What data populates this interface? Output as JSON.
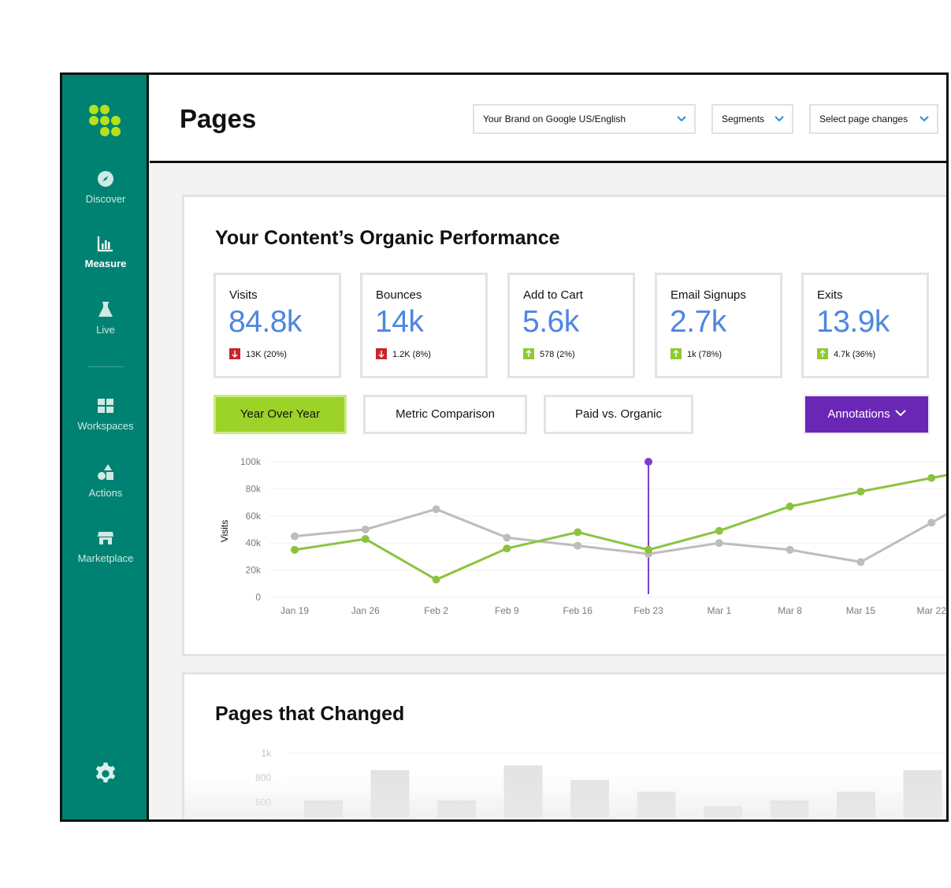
{
  "sidebar": {
    "items": [
      {
        "label": "Discover",
        "icon": "compass-icon"
      },
      {
        "label": "Measure",
        "icon": "bar-chart-icon"
      },
      {
        "label": "Live",
        "icon": "flask-icon"
      },
      {
        "label": "Workspaces",
        "icon": "grid-icon"
      },
      {
        "label": "Actions",
        "icon": "shapes-icon"
      },
      {
        "label": "Marketplace",
        "icon": "store-icon"
      }
    ],
    "settings_icon": "gear-icon"
  },
  "header": {
    "title": "Pages",
    "dropdowns": {
      "brand": "Your Brand on Google US/English",
      "segments": "Segments",
      "page_changes": "Select page changes"
    }
  },
  "performance": {
    "title": "Your Content’s Organic Performance",
    "cards": [
      {
        "label": "Visits",
        "value": "84.8k",
        "delta": "13K (20%)",
        "direction": "down"
      },
      {
        "label": "Bounces",
        "value": "14k",
        "delta": "1.2K (8%)",
        "direction": "down"
      },
      {
        "label": "Add to Cart",
        "value": "5.6k",
        "delta": "578 (2%)",
        "direction": "up"
      },
      {
        "label": "Email Signups",
        "value": "2.7k",
        "delta": "1k (78%)",
        "direction": "up"
      },
      {
        "label": "Exits",
        "value": "13.9k",
        "delta": "4.7k (36%)",
        "direction": "up"
      }
    ],
    "tabs": {
      "year_over_year": "Year Over Year",
      "metric_comparison": "Metric Comparison",
      "paid_vs_organic": "Paid vs. Organic",
      "annotations": "Annotations"
    }
  },
  "chart_data": {
    "type": "line",
    "ylabel": "Visits",
    "ylim": [
      0,
      100000
    ],
    "yticks": [
      "100k",
      "80k",
      "60k",
      "40k",
      "20k",
      "0"
    ],
    "categories": [
      "Jan 19",
      "Jan 26",
      "Feb 2",
      "Feb 9",
      "Feb 16",
      "Feb 23",
      "Mar 1",
      "Mar 8",
      "Mar 15",
      "Mar 22"
    ],
    "series": [
      {
        "color": "#8ac43f",
        "values": [
          35000,
          43000,
          13000,
          36000,
          48000,
          35000,
          49000,
          67000,
          78000,
          88000
        ]
      },
      {
        "color": "#bdbdbd",
        "values": [
          45000,
          50000,
          65000,
          44000,
          38000,
          32000,
          40000,
          35000,
          26000,
          55000
        ]
      }
    ],
    "annotation": {
      "x": "Feb 23",
      "color": "#7e3fc9"
    },
    "grid": true
  },
  "pages_changed": {
    "title": "Pages that Changed",
    "yticks": [
      "1k",
      "800",
      "600"
    ],
    "bars": [
      0.3,
      0.82,
      0.3,
      0.9,
      0.65,
      0.45,
      0.2,
      0.3,
      0.45,
      0.82
    ]
  }
}
